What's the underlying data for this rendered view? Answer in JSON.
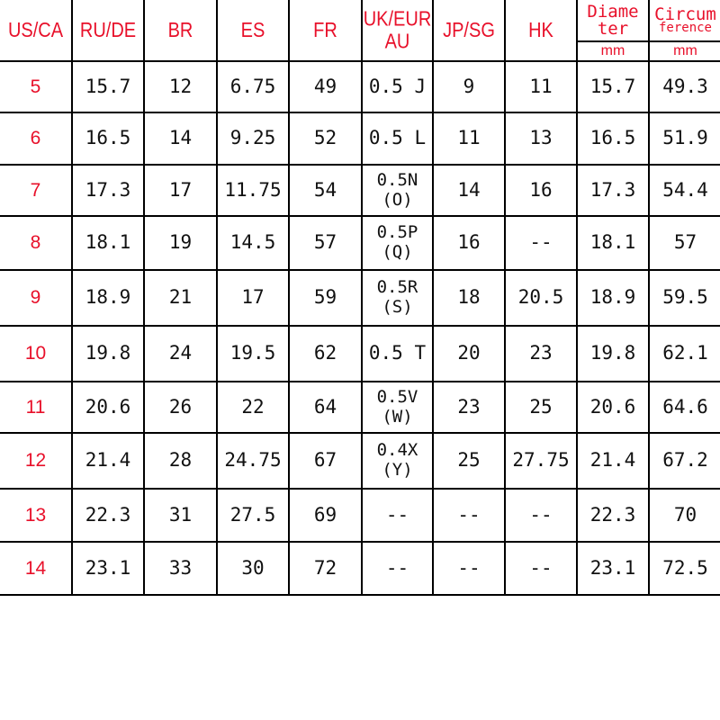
{
  "colors": {
    "header": "#e8102a",
    "text": "#111111",
    "grid": "#000000"
  },
  "headers": [
    "US/CA",
    "RU/DE",
    "BR",
    "ES",
    "FR",
    "UK/EUR AU",
    "JP/SG",
    "HK"
  ],
  "header_uk_line1": "UK/EUR",
  "header_uk_line2": "AU",
  "diameter": {
    "line1": "Diame",
    "line2": "ter",
    "unit": "mm"
  },
  "circumference": {
    "line1": "Circum",
    "line2": "ference",
    "unit": "mm"
  },
  "rows": [
    [
      "5",
      "15.7",
      "12",
      "6.75",
      "49",
      "0.5 J",
      "9",
      "11",
      "15.7",
      "49.3"
    ],
    [
      "6",
      "16.5",
      "14",
      "9.25",
      "52",
      "0.5 L",
      "11",
      "13",
      "16.5",
      "51.9"
    ],
    [
      "7",
      "17.3",
      "17",
      "11.75",
      "54",
      "0.5N (O)",
      "14",
      "16",
      "17.3",
      "54.4"
    ],
    [
      "8",
      "18.1",
      "19",
      "14.5",
      "57",
      "0.5P (Q)",
      "16",
      "--",
      "18.1",
      "57"
    ],
    [
      "9",
      "18.9",
      "21",
      "17",
      "59",
      "0.5R (S)",
      "18",
      "20.5",
      "18.9",
      "59.5"
    ],
    [
      "10",
      "19.8",
      "24",
      "19.5",
      "62",
      "0.5 T",
      "20",
      "23",
      "19.8",
      "62.1"
    ],
    [
      "11",
      "20.6",
      "26",
      "22",
      "64",
      "0.5V (W)",
      "23",
      "25",
      "20.6",
      "64.6"
    ],
    [
      "12",
      "21.4",
      "28",
      "24.75",
      "67",
      "0.4X (Y)",
      "25",
      "27.75",
      "21.4",
      "67.2"
    ],
    [
      "13",
      "22.3",
      "31",
      "27.5",
      "69",
      "--",
      "--",
      "--",
      "22.3",
      "70"
    ],
    [
      "14",
      "23.1",
      "33",
      "30",
      "72",
      "--",
      "--",
      "--",
      "23.1",
      "72.5"
    ]
  ]
}
